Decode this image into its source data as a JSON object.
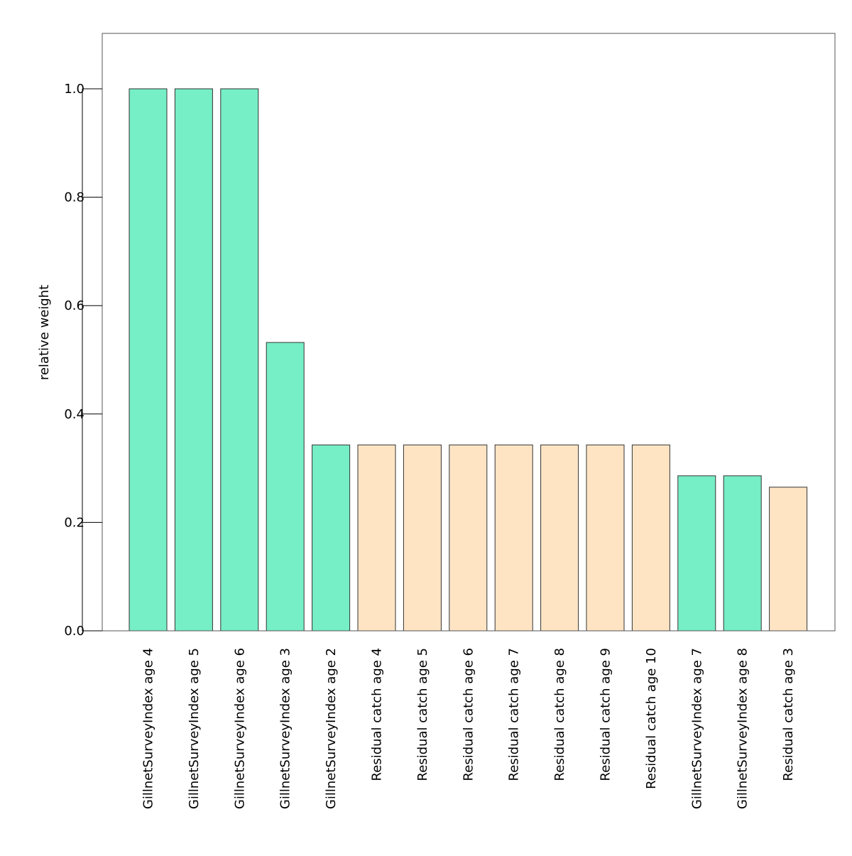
{
  "chart_data": {
    "type": "bar",
    "title": "",
    "xlabel": "",
    "ylabel": "relative weight",
    "ylim": [
      0,
      1.1
    ],
    "yticks": [
      0.0,
      0.2,
      0.4,
      0.6,
      0.8,
      1.0
    ],
    "ytick_labels": [
      "0.0",
      "0.2",
      "0.4",
      "0.6",
      "0.8",
      "1.0"
    ],
    "grid": false,
    "legend": "none",
    "colors": {
      "survey": "#76eec6",
      "catch": "#ffe4c4",
      "bar_outline": "#333333",
      "frame": "#555555"
    },
    "categories": [
      "GillnetSurveyIndex age 4",
      "GillnetSurveyIndex age 5",
      "GillnetSurveyIndex age 6",
      "GillnetSurveyIndex age 3",
      "GillnetSurveyIndex age 2",
      "Residual catch age 4",
      "Residual catch age 5",
      "Residual catch age 6",
      "Residual catch age 7",
      "Residual catch age 8",
      "Residual catch age 9",
      "Residual catch age 10",
      "GillnetSurveyIndex age 7",
      "GillnetSurveyIndex age 8",
      "Residual catch age 3"
    ],
    "values": [
      1.0,
      1.0,
      1.0,
      0.532,
      0.343,
      0.343,
      0.343,
      0.343,
      0.343,
      0.343,
      0.343,
      0.343,
      0.286,
      0.286,
      0.265
    ],
    "groups": [
      "survey",
      "survey",
      "survey",
      "survey",
      "survey",
      "catch",
      "catch",
      "catch",
      "catch",
      "catch",
      "catch",
      "catch",
      "survey",
      "survey",
      "catch"
    ]
  }
}
